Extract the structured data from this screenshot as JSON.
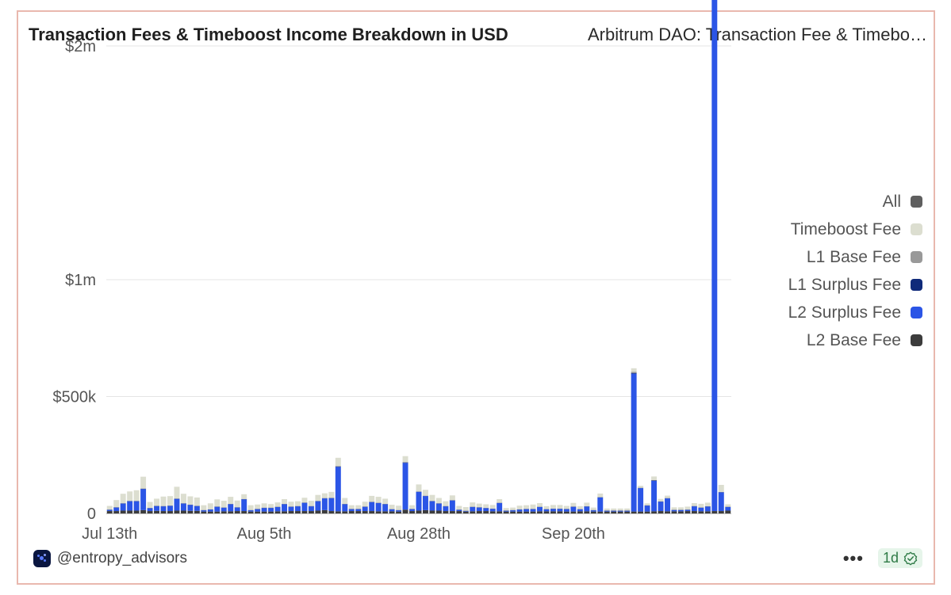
{
  "header": {
    "title": "Transaction Fees & Timeboost Income Breakdown in USD",
    "subtitle": "Arbitrum DAO: Transaction Fee & Timeboost Income Breakdown"
  },
  "footer": {
    "handle": "@entropy_advisors",
    "more_label": "•••",
    "badge_label": "1d",
    "logo_icon": "entropy-logo-icon",
    "check_icon": "check-badge-icon"
  },
  "chart_data": {
    "type": "bar",
    "stacked": true,
    "x_labels": [
      "Jul 13th",
      "Aug 5th",
      "Aug 28th",
      "Sep 20th"
    ],
    "x_label_indices": [
      0,
      23,
      46,
      69
    ],
    "y_ticks": [
      {
        "value": 0,
        "label": "0"
      },
      {
        "value": 500000,
        "label": "$500k"
      },
      {
        "value": 1000000,
        "label": "$1m"
      },
      {
        "value": 2000000,
        "label": "$2m"
      }
    ],
    "ylim": [
      0,
      2600000
    ],
    "grid": true,
    "legend_position": "right",
    "legend": [
      {
        "name": "All",
        "color": "#5f5f5f"
      },
      {
        "name": "Timeboost Fee",
        "color": "#dcded0"
      },
      {
        "name": "L1 Base Fee",
        "color": "#999999"
      },
      {
        "name": "L1 Surplus Fee",
        "color": "#0f2a7a"
      },
      {
        "name": "L2 Surplus Fee",
        "color": "#2b55e6"
      },
      {
        "name": "L2 Base Fee",
        "color": "#3c3c3c"
      }
    ],
    "series": [
      {
        "name": "L2 Base Fee",
        "color": "#3c3c3c",
        "values": [
          10000,
          10000,
          12000,
          12000,
          12000,
          14000,
          10000,
          11000,
          10000,
          10000,
          12000,
          12000,
          11000,
          11000,
          8000,
          8000,
          8000,
          9000,
          9000,
          10000,
          10000,
          8000,
          8000,
          8000,
          8000,
          9000,
          9000,
          10000,
          10000,
          10000,
          10000,
          12000,
          14000,
          10000,
          9000,
          9000,
          10000,
          10000,
          10000,
          10000,
          9000,
          9000,
          9000,
          8000,
          16000,
          10000,
          12000,
          14000,
          12000,
          12000,
          10000,
          10000,
          10000,
          8000,
          9000,
          10000,
          10000,
          9000,
          9000,
          8000,
          8000,
          8000,
          8000,
          8000,
          9000,
          9000,
          9000,
          9000,
          8000,
          8000,
          9000,
          9000,
          8000,
          8000,
          8000,
          8000,
          8000,
          8000,
          8000,
          8000,
          8000,
          9000,
          10000,
          9000,
          9000,
          9000,
          10000,
          10000,
          9000,
          9000,
          10000,
          10000,
          12000
        ]
      },
      {
        "name": "L2 Surplus Fee",
        "color": "#2b55e6",
        "values": [
          5000,
          15000,
          30000,
          40000,
          40000,
          90000,
          12000,
          20000,
          20000,
          22000,
          50000,
          30000,
          25000,
          20000,
          5000,
          8000,
          20000,
          15000,
          30000,
          15000,
          50000,
          5000,
          10000,
          15000,
          15000,
          18000,
          30000,
          18000,
          20000,
          35000,
          20000,
          40000,
          50000,
          55000,
          190000,
          30000,
          8000,
          8000,
          18000,
          38000,
          35000,
          30000,
          8000,
          5000,
          200000,
          8000,
          80000,
          60000,
          40000,
          30000,
          20000,
          45000,
          5000,
          2000,
          18000,
          15000,
          12000,
          10000,
          35000,
          3000,
          5000,
          8000,
          10000,
          10000,
          18000,
          8000,
          10000,
          10000,
          10000,
          20000,
          8000,
          20000,
          5000,
          60000,
          3000,
          3000,
          3000,
          3000,
          590000,
          100000,
          25000,
          130000,
          40000,
          55000,
          5000,
          5000,
          5000,
          20000,
          15000,
          20000,
          2250000,
          80000,
          15000
        ]
      },
      {
        "name": "L1 Surplus Fee",
        "color": "#0f2a7a",
        "values": [
          1000,
          1000,
          1000,
          1000,
          1000,
          1500,
          1000,
          1000,
          1000,
          1000,
          1000,
          1000,
          1000,
          1000,
          1000,
          1000,
          1000,
          1000,
          1000,
          1000,
          1000,
          1000,
          1000,
          1000,
          1000,
          1000,
          1000,
          1000,
          1000,
          1000,
          1000,
          1000,
          1000,
          1000,
          2000,
          1000,
          1000,
          1000,
          1000,
          1000,
          1000,
          1000,
          1000,
          1000,
          2000,
          1000,
          1000,
          1000,
          1000,
          1000,
          1000,
          1000,
          1000,
          1000,
          1000,
          1000,
          1000,
          1000,
          1000,
          1000,
          1000,
          1000,
          1000,
          1000,
          1000,
          1000,
          1000,
          1000,
          1000,
          1000,
          1000,
          1000,
          1000,
          1000,
          1000,
          1000,
          1000,
          1000,
          3000,
          1000,
          1000,
          2000,
          1000,
          1000,
          1000,
          1000,
          1000,
          1000,
          1000,
          1000,
          5000,
          1000,
          1000
        ]
      },
      {
        "name": "L1 Base Fee",
        "color": "#999999",
        "values": [
          1000,
          1000,
          1000,
          1000,
          1000,
          1500,
          1000,
          1000,
          1000,
          1000,
          1000,
          1000,
          1000,
          1000,
          1000,
          1000,
          1000,
          1000,
          1000,
          1000,
          1000,
          1000,
          1000,
          1000,
          1000,
          1000,
          1000,
          1000,
          1000,
          1000,
          1000,
          1000,
          1000,
          1000,
          2000,
          1000,
          1000,
          1000,
          1000,
          1000,
          1000,
          1000,
          1000,
          1000,
          2000,
          1000,
          1000,
          1000,
          1000,
          1000,
          1000,
          1000,
          1000,
          1000,
          1000,
          1000,
          1000,
          1000,
          1000,
          1000,
          1000,
          1000,
          1000,
          1000,
          1000,
          1000,
          1000,
          1000,
          1000,
          1000,
          1000,
          1000,
          1000,
          1000,
          1000,
          1000,
          1000,
          1000,
          5000,
          1000,
          1000,
          2000,
          1000,
          1000,
          1000,
          1000,
          1000,
          1000,
          1000,
          1000,
          20000,
          1000,
          1000
        ]
      },
      {
        "name": "Timeboost Fee",
        "color": "#dcded0",
        "values": [
          15000,
          30000,
          40000,
          40000,
          45000,
          50000,
          25000,
          30000,
          40000,
          40000,
          50000,
          40000,
          35000,
          35000,
          20000,
          25000,
          30000,
          28000,
          30000,
          28000,
          20000,
          20000,
          18000,
          18000,
          15000,
          18000,
          20000,
          20000,
          20000,
          20000,
          22000,
          25000,
          20000,
          25000,
          35000,
          25000,
          15000,
          15000,
          20000,
          25000,
          25000,
          22000,
          18000,
          18000,
          25000,
          15000,
          30000,
          25000,
          25000,
          22000,
          20000,
          20000,
          15000,
          15000,
          18000,
          15000,
          15000,
          15000,
          15000,
          10000,
          10000,
          15000,
          15000,
          18000,
          15000,
          12000,
          15000,
          15000,
          12000,
          15000,
          12000,
          15000,
          10000,
          15000,
          8000,
          8000,
          8000,
          8000,
          15000,
          8000,
          8000,
          15000,
          10000,
          10000,
          10000,
          10000,
          12000,
          12000,
          15000,
          15000,
          60000,
          30000,
          10000
        ]
      }
    ]
  }
}
